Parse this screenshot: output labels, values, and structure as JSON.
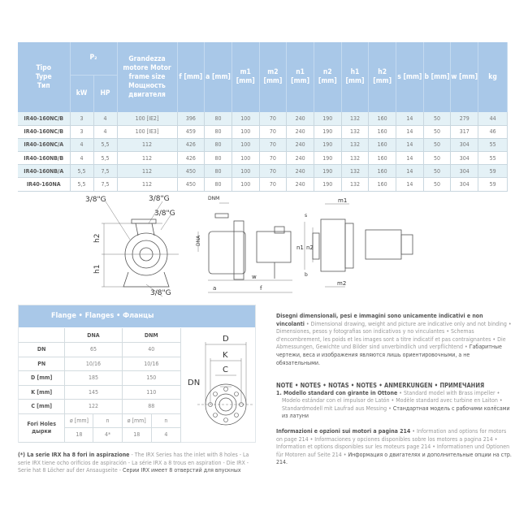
{
  "spec_table": {
    "headers": {
      "type": "Tipo\nType\nТип",
      "p2": "P₂",
      "kw": "kW",
      "hp": "HP",
      "frame": "Grandezza motore Motor frame size Мощность двигателя",
      "f": "f [mm]",
      "a": "a [mm]",
      "m1": "m1 [mm]",
      "m2": "m2 [mm]",
      "n1": "n1 [mm]",
      "n2": "n2 [mm]",
      "h1": "h1 [mm]",
      "h2": "h2 [mm]",
      "s": "s [mm]",
      "b": "b [mm]",
      "w": "w [mm]",
      "kg": "kg"
    },
    "rows": [
      [
        "IR40-160NC/B",
        "3",
        "4",
        "100 [IE2]",
        "396",
        "80",
        "100",
        "70",
        "240",
        "190",
        "132",
        "160",
        "14",
        "50",
        "279",
        "44"
      ],
      [
        "IR40-160NC/B",
        "3",
        "4",
        "100 [IE3]",
        "459",
        "80",
        "100",
        "70",
        "240",
        "190",
        "132",
        "160",
        "14",
        "50",
        "317",
        "46"
      ],
      [
        "IR40-160NC/A",
        "4",
        "5,5",
        "112",
        "426",
        "80",
        "100",
        "70",
        "240",
        "190",
        "132",
        "160",
        "14",
        "50",
        "304",
        "55"
      ],
      [
        "IR40-160NB/B",
        "4",
        "5,5",
        "112",
        "426",
        "80",
        "100",
        "70",
        "240",
        "190",
        "132",
        "160",
        "14",
        "50",
        "304",
        "55"
      ],
      [
        "IR40-160NB/A",
        "5,5",
        "7,5",
        "112",
        "450",
        "80",
        "100",
        "70",
        "240",
        "190",
        "132",
        "160",
        "14",
        "50",
        "304",
        "59"
      ],
      [
        "IR40-160NA",
        "5,5",
        "7,5",
        "112",
        "450",
        "80",
        "100",
        "70",
        "240",
        "190",
        "132",
        "160",
        "14",
        "50",
        "304",
        "59"
      ]
    ]
  },
  "drawings": {
    "g1": "3/8\"G",
    "g2": "3/8\"G",
    "g3": "3/8\"G",
    "g4": "3/8\"G",
    "h1": "h1",
    "h2": "h2",
    "dnm": "DNM",
    "dna": "DNA",
    "a": "a",
    "f": "f",
    "w": "w",
    "m1": "m1",
    "m2": "m2",
    "n1": "n1",
    "n2": "n2",
    "s": "s",
    "b": "b"
  },
  "flange": {
    "title": "Flange • Flanges • Фланцы",
    "cols": [
      "DNA",
      "DNM"
    ],
    "rows": [
      {
        "label": "DN",
        "dna": "65",
        "dnm": "40"
      },
      {
        "label": "PN",
        "dna": "10/16",
        "dnm": "10/16"
      },
      {
        "label": "D [mm]",
        "dna": "185",
        "dnm": "150"
      },
      {
        "label": "K [mm]",
        "dna": "145",
        "dnm": "110"
      },
      {
        "label": "C [mm]",
        "dna": "122",
        "dnm": "88"
      }
    ],
    "holes_label": "Fori Holes дырки",
    "dia": "ø [mm]",
    "n": "n",
    "holes": {
      "dna_dia": "18",
      "dna_n": "4*",
      "dnm_dia": "18",
      "dnm_n": "4"
    },
    "diagram": {
      "d": "D",
      "k": "K",
      "c": "C",
      "dn": "DN"
    }
  },
  "footnote": {
    "bold": "(*) La serie IRX ha 8 fori in aspirazione",
    "rest": " - The IRX Series has the inlet with 8 holes - La serie IRX tiene ocho orificios de aspiración - La série IRX a 8 trous en aspiration - Die IRX -Serie hat 8 Löcher auf der Ansaugseite - ",
    "ru": "Серии IRX имеет 8 отверстий для впускных"
  },
  "disclaimer": {
    "bold": "Disegni dimensionali, pesi e immagini sono unicamente indicativi e non vincolanti",
    "rest": " • Dimensional drawing, weight and picture are indicative only and not binding • Dimensiones, pesos y fotografias son indicativos y no vinculantes • Schemas d'encombrement, les poids et les images sont a titre indicatif et pas contraignantes • Die Abmessungen, Gewichte und Bilder sind unverbindlich und verpflichtend • ",
    "ru": "Габаритные чертежи, веса и изображения являются лишь ориентировочными, а не обязательными."
  },
  "notes": {
    "title": "NOTE • NOTES • NOTAS • NOTES • ANMERKUNGEN • ПРИМЕЧАНИЯ",
    "note1_bold": "1. Modello standard con girante in Ottone",
    "note1_rest": " • Standard model with Brass impeller • Modelo estándar con el impulsor de Latón • Modèle standard avec turbine en Laiton • Standardmodell mit Laufrad aus Messing • ",
    "note1_ru": "Стандартная модель с рабочими колёсами из латуни",
    "info_bold": "Informazioni e opzioni sui motori a pagina 214",
    "info_rest": " • Information and options for motors on page 214 • Informaciones y opciones disponibles sobre los motores a pagina 214 • Information et options disponibles sur les moteurs page 214 • Informationen und Optionen für Motoren auf Seite 214 • ",
    "info_ru": "Информация о двигателях и дополнительные опции на стр. 214."
  }
}
